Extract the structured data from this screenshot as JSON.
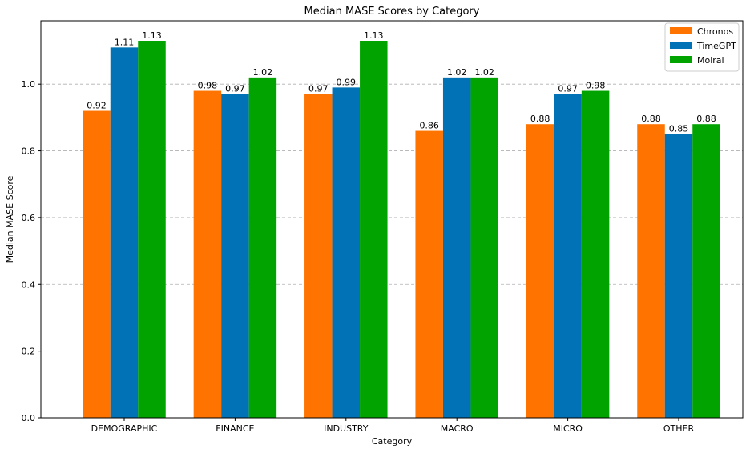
{
  "chart_data": {
    "type": "bar",
    "title": "Median MASE Scores by Category",
    "xlabel": "Category",
    "ylabel": "Median MASE Score",
    "categories": [
      "DEMOGRAPHIC",
      "FINANCE",
      "INDUSTRY",
      "MACRO",
      "MICRO",
      "OTHER"
    ],
    "series": [
      {
        "name": "Chronos",
        "color": "#ff7400",
        "values": [
          0.92,
          0.98,
          0.97,
          0.86,
          0.88,
          0.88
        ],
        "labels": [
          "0.92",
          "0.98",
          "0.97",
          "0.86",
          "0.88",
          "0.88"
        ]
      },
      {
        "name": "TimeGPT",
        "color": "#0072b5",
        "values": [
          1.11,
          0.97,
          0.99,
          1.02,
          0.97,
          0.85
        ],
        "labels": [
          "1.11",
          "0.97",
          "0.99",
          "1.02",
          "0.97",
          "0.85"
        ]
      },
      {
        "name": "Moirai",
        "color": "#00a300",
        "values": [
          1.13,
          1.02,
          1.13,
          1.02,
          0.98,
          0.88
        ],
        "labels": [
          "1.13",
          "1.02",
          "1.13",
          "1.02",
          "0.98",
          "0.88"
        ]
      }
    ],
    "ylim": [
      0,
      1.19
    ],
    "yticks": [
      "0.0",
      "0.2",
      "0.4",
      "0.6",
      "0.8",
      "1.0"
    ],
    "ytick_values": [
      0,
      0.2,
      0.4,
      0.6,
      0.8,
      1.0
    ],
    "grid": "y-dashed",
    "legend": "top-right"
  }
}
